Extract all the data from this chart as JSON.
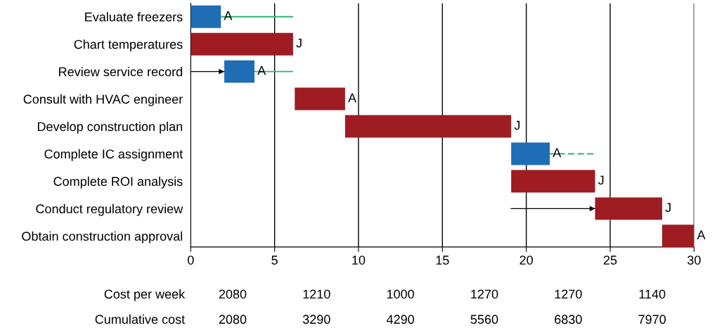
{
  "chart_data": {
    "type": "bar",
    "orientation": "horizontal",
    "categories": [
      "Evaluate freezers",
      "Chart temperatures",
      "Review service record",
      "Consult with HVAC engineer",
      "Develop construction plan",
      "Complete IC assignment",
      "Complete ROI analysis",
      "Conduct regulatory review",
      "Obtain construction approval"
    ],
    "series": [
      {
        "base": [
          0,
          0,
          2.0,
          6.2,
          9.2,
          19.1,
          19.1,
          24.1,
          28.1
        ],
        "values": [
          1.8,
          6.1,
          1.8,
          3.0,
          9.9,
          2.3,
          5.0,
          4.0,
          1.9
        ],
        "colors": [
          "#1f6db5",
          "#9e1c22",
          "#1f6db5",
          "#9e1c22",
          "#9e1c22",
          "#1f6db5",
          "#9e1c22",
          "#9e1c22",
          "#9e1c22"
        ],
        "value_labels": [
          "A",
          "J",
          "A",
          "A",
          "J",
          "A",
          "J",
          "J",
          "A"
        ]
      },
      {
        "line_style": "dashed",
        "color": "#2bb673",
        "base": [
          1.8,
          null,
          3.8,
          null,
          null,
          21.4,
          null,
          null,
          null
        ],
        "values": [
          4.3,
          null,
          2.3,
          null,
          null,
          2.7,
          null,
          null,
          null
        ]
      },
      {
        "line_style": "solid",
        "color": "#000000",
        "base": [
          null,
          null,
          0,
          null,
          null,
          null,
          null,
          19.1,
          null
        ],
        "values": [
          null,
          null,
          2.0,
          null,
          null,
          null,
          null,
          5.0,
          null
        ]
      }
    ],
    "xlim": [
      0,
      30
    ],
    "xticks": [
      0,
      5,
      10,
      15,
      20,
      25,
      30
    ],
    "grid": "x",
    "annotations": [
      "Cost per week",
      "2080",
      "1210",
      "1000",
      "1270",
      "1270",
      "1140",
      "Cumulative cost",
      "2080",
      "3290",
      "4290",
      "5560",
      "6830",
      "7970"
    ]
  }
}
